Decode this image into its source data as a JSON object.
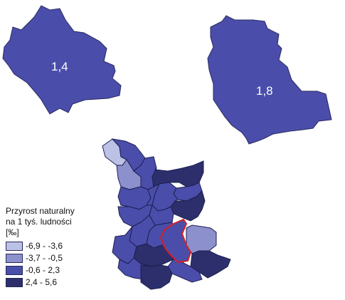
{
  "map": {
    "regions": [
      {
        "id": "top-left-region",
        "label": "1,4",
        "color": "#4a4eaa"
      },
      {
        "id": "top-right-region",
        "label": "1,8",
        "color": "#4a4eaa"
      }
    ],
    "highlighted_region_color": "#d11f2a"
  },
  "legend": {
    "title": "Przyrost naturalny\nna 1 tyś. ludności",
    "unit": "[‰]",
    "classes": [
      {
        "label": "-6,9 - -3,6",
        "color": "#bcc1e6"
      },
      {
        "label": "-3,7 - -0,5",
        "color": "#8c90cc"
      },
      {
        "label": "-0,6 - 2,3",
        "color": "#4a4eaa"
      },
      {
        "label": "2,4 - 5,6",
        "color": "#2c2f6b"
      }
    ]
  }
}
